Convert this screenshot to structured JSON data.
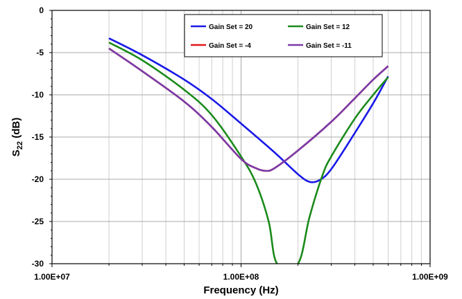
{
  "chart_data": {
    "type": "line",
    "xlabel": "Frequency (Hz)",
    "ylabel_main": "S",
    "ylabel_sub": "22",
    "ylabel_rest": " (dB)",
    "x_scale": "log",
    "xlim": [
      10000000,
      1000000000
    ],
    "ylim": [
      -30,
      0
    ],
    "x_ticks": [
      10000000,
      100000000,
      1000000000
    ],
    "x_tick_labels": [
      "1.00E+07",
      "1.00E+08",
      "1.00E+09"
    ],
    "y_ticks": [
      0,
      -5,
      -10,
      -15,
      -20,
      -25,
      -30
    ],
    "y_tick_labels": [
      "0",
      "-5",
      "-10",
      "-15",
      "-20",
      "-25",
      "-30"
    ],
    "grid": true,
    "legend_position": "top-right",
    "series": [
      {
        "name": "Gain Set = 20",
        "color": "#1818e8",
        "points": [
          [
            20000000,
            -3.3
          ],
          [
            30000000,
            -5.3
          ],
          [
            50000000,
            -8.2
          ],
          [
            70000000,
            -10.5
          ],
          [
            100000000,
            -13.4
          ],
          [
            150000000,
            -16.8
          ],
          [
            200000000,
            -19.4
          ],
          [
            230000000,
            -20.3
          ],
          [
            260000000,
            -20.1
          ],
          [
            300000000,
            -18.8
          ],
          [
            400000000,
            -14.5
          ],
          [
            500000000,
            -11.0
          ],
          [
            600000000,
            -7.8
          ]
        ]
      },
      {
        "name": "Gain Set = 12",
        "color": "#1a8a1a",
        "points": [
          [
            20000000,
            -3.8
          ],
          [
            30000000,
            -5.9
          ],
          [
            50000000,
            -9.4
          ],
          [
            70000000,
            -12.4
          ],
          [
            100000000,
            -17.3
          ],
          [
            120000000,
            -20.5
          ],
          [
            140000000,
            -25.0
          ],
          [
            155000000,
            -30.0
          ],
          [
            200000000,
            -30.0
          ],
          [
            230000000,
            -24.5
          ],
          [
            270000000,
            -19.5
          ],
          [
            300000000,
            -17.3
          ],
          [
            400000000,
            -12.8
          ],
          [
            500000000,
            -10.0
          ],
          [
            600000000,
            -7.9
          ]
        ]
      },
      {
        "name": "Gain Set = -4",
        "color": "#e01818",
        "points": [
          [
            20000000,
            -4.5
          ],
          [
            30000000,
            -7.2
          ],
          [
            50000000,
            -10.8
          ],
          [
            70000000,
            -13.8
          ],
          [
            100000000,
            -17.6
          ],
          [
            120000000,
            -18.7
          ],
          [
            135000000,
            -19.0
          ],
          [
            150000000,
            -18.7
          ],
          [
            200000000,
            -16.6
          ],
          [
            300000000,
            -13.2
          ],
          [
            400000000,
            -10.4
          ],
          [
            500000000,
            -8.2
          ],
          [
            600000000,
            -6.6
          ]
        ]
      },
      {
        "name": "Gain Set = -11",
        "color": "#7a3aa8",
        "points": [
          [
            20000000,
            -4.5
          ],
          [
            30000000,
            -7.2
          ],
          [
            50000000,
            -10.8
          ],
          [
            70000000,
            -13.8
          ],
          [
            100000000,
            -17.6
          ],
          [
            120000000,
            -18.7
          ],
          [
            135000000,
            -19.0
          ],
          [
            150000000,
            -18.7
          ],
          [
            200000000,
            -16.6
          ],
          [
            300000000,
            -13.2
          ],
          [
            400000000,
            -10.4
          ],
          [
            500000000,
            -8.2
          ],
          [
            600000000,
            -6.6
          ]
        ]
      }
    ]
  }
}
